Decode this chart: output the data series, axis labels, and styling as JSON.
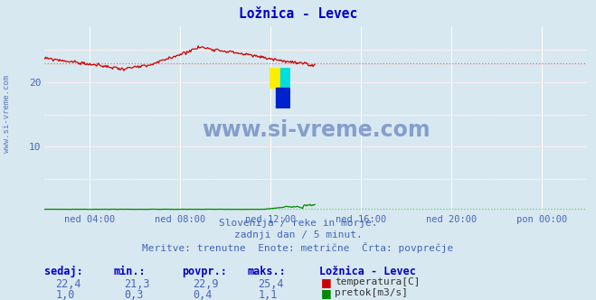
{
  "title": "Ložnica - Levec",
  "background_color": "#d8e8f0",
  "plot_bg_color": "#d8e8f0",
  "grid_color": "#ffffff",
  "grid_minor_color": "#ffb0b0",
  "x_tick_labels": [
    "ned 04:00",
    "ned 08:00",
    "ned 12:00",
    "ned 16:00",
    "ned 20:00",
    "pon 00:00"
  ],
  "x_tick_positions": [
    48,
    144,
    240,
    336,
    432,
    528
  ],
  "y_ticks": [
    10,
    20
  ],
  "ylim": [
    0,
    28.5
  ],
  "xlim": [
    0,
    576
  ],
  "temp_avg": 22.9,
  "temp_min": 21.3,
  "temp_max": 25.4,
  "flow_avg": 0.4,
  "flow_min": 0.3,
  "flow_max": 1.1,
  "temp_line_color": "#cc0000",
  "temp_avg_line_color": "#ff6666",
  "flow_line_color": "#008800",
  "flow_avg_line_color": "#66cc66",
  "watermark_text": "www.si-vreme.com",
  "sub_text1": "Slovenija / reke in morje.",
  "sub_text2": "zadnji dan / 5 minut.",
  "sub_text3": "Meritve: trenutne  Enote: metrične  Črta: povprečje",
  "label_color": "#4466bb",
  "title_color": "#0000cc",
  "tick_label_color": "#4466bb",
  "num_points": 288
}
